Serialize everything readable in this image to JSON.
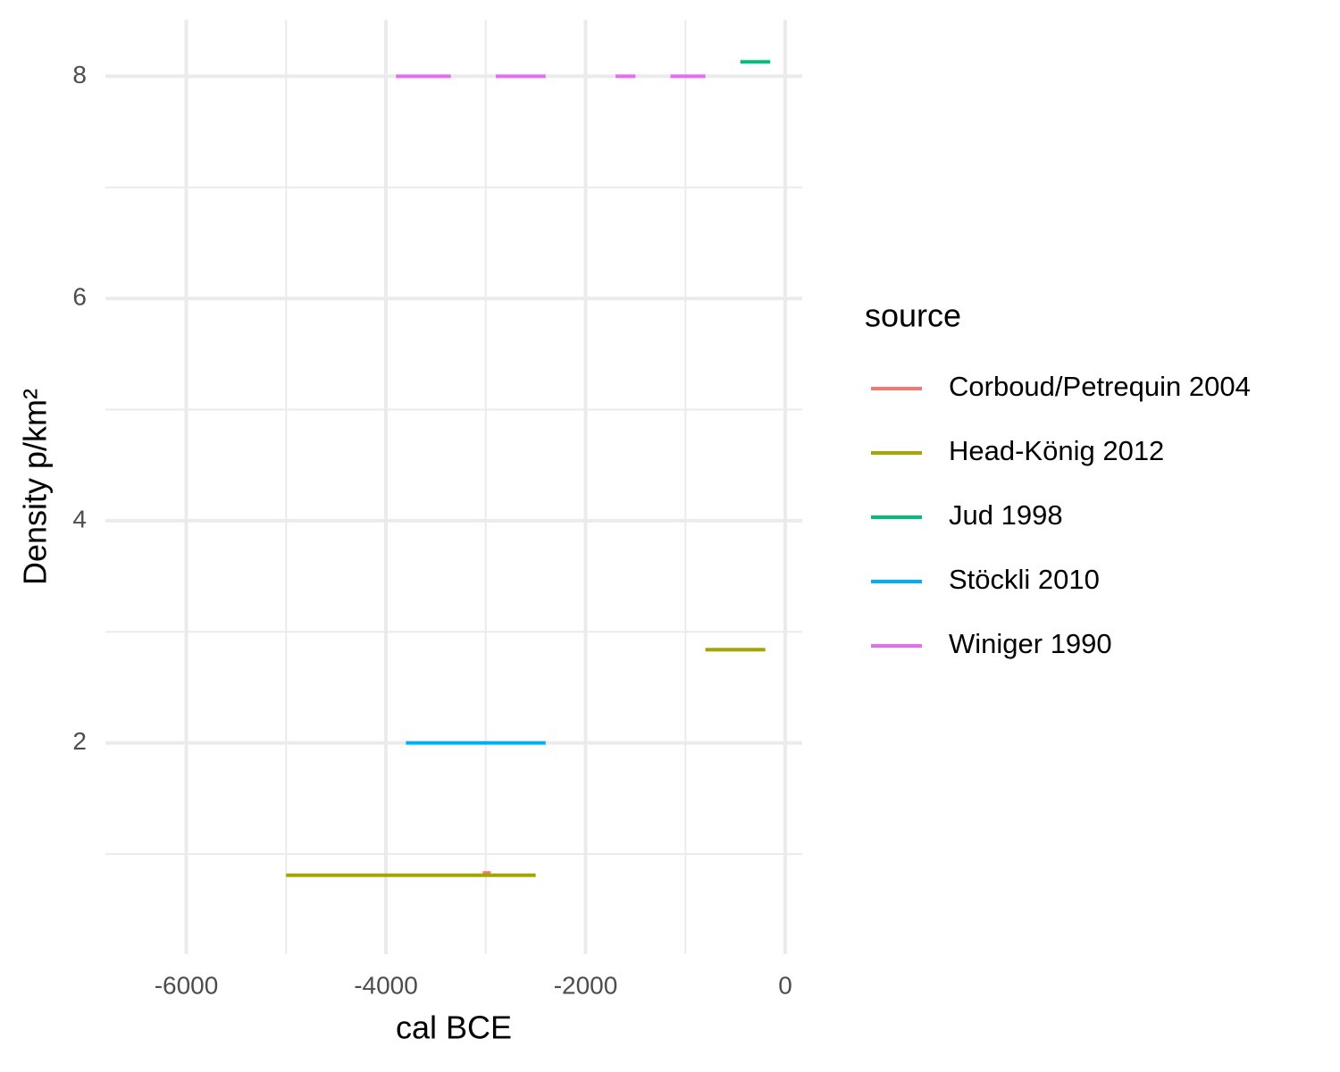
{
  "chart_data": {
    "type": "segment",
    "x_label": "cal BCE",
    "y_label": "Density p/km²",
    "xlim": [
      -6810,
      170
    ],
    "ylim": [
      0.1,
      8.51
    ],
    "xticks": [
      -6000,
      -4000,
      -2000,
      0
    ],
    "yticks": [
      2,
      4,
      6,
      8
    ],
    "xminor": [
      -5000,
      -3000,
      -1000
    ],
    "yminor": [
      1,
      3,
      5,
      7
    ],
    "grid": true,
    "legend_title": "source",
    "legend_position": "right",
    "series": [
      {
        "name": "Corboud/Petrequin 2004",
        "color": "#F8766D",
        "x_start": [
          -3030
        ],
        "x_end": [
          -2950
        ],
        "y": [
          0.83
        ]
      },
      {
        "name": "Head-König 2012",
        "color": "#A3A500",
        "x_start": [
          -5000,
          -800
        ],
        "x_end": [
          -2500,
          -200
        ],
        "y": [
          0.81,
          2.84
        ]
      },
      {
        "name": "Jud 1998",
        "color": "#00BF7D",
        "x_start": [
          -450
        ],
        "x_end": [
          -150
        ],
        "y": [
          8.13
        ]
      },
      {
        "name": "Stöckli 2010",
        "color": "#00B0F6",
        "x_start": [
          -3800
        ],
        "x_end": [
          -2400
        ],
        "y": [
          2
        ]
      },
      {
        "name": "Winiger 1990",
        "color": "#E76BF3",
        "x_start": [
          -3900,
          -2900,
          -1700,
          -1150
        ],
        "x_end": [
          -3350,
          -2400,
          -1500,
          -800
        ],
        "y": [
          8,
          8,
          8,
          8
        ]
      }
    ]
  }
}
